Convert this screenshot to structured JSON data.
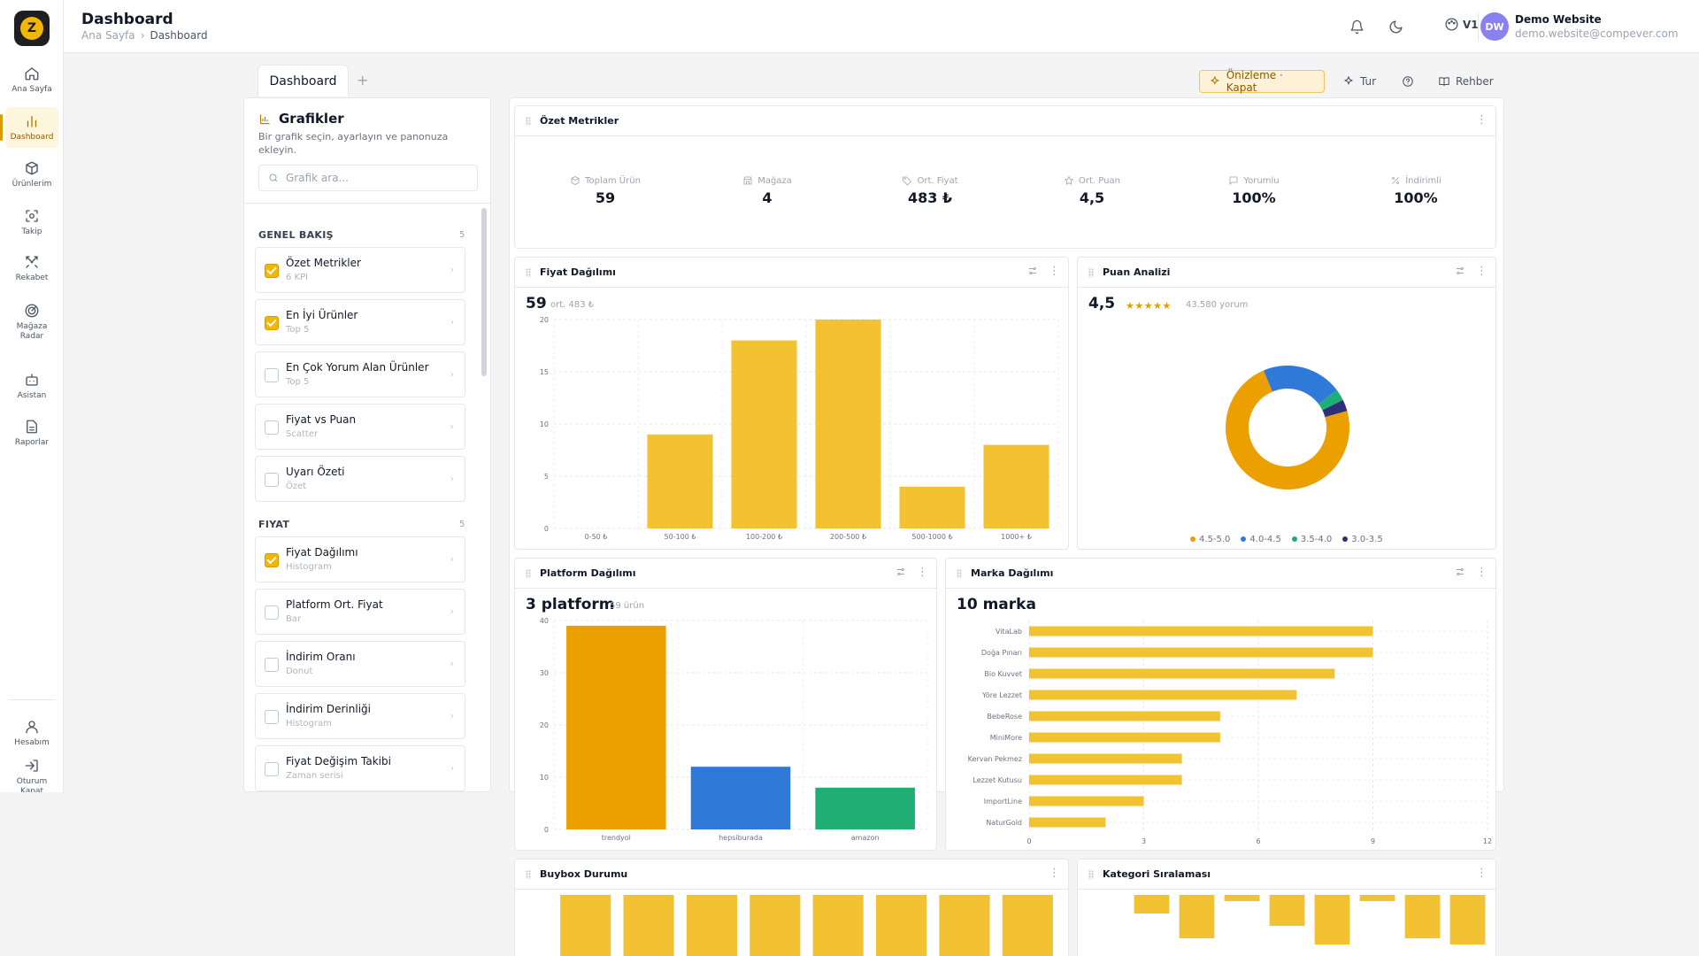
{
  "app": {
    "logo_letter": "Z"
  },
  "nav": [
    {
      "label": "Ana Sayfa",
      "icon": "home-icon"
    },
    {
      "label": "Dashboard",
      "icon": "chart-icon",
      "active": true
    },
    {
      "label": "Ürünlerim",
      "icon": "box-icon"
    },
    {
      "label": "Takip",
      "icon": "scan-icon"
    },
    {
      "label": "Rekabet",
      "icon": "swords-icon"
    },
    {
      "label": "Mağaza Radar",
      "icon": "radar-icon"
    },
    {
      "label": "Asistan",
      "icon": "bot-icon"
    },
    {
      "label": "Raporlar",
      "icon": "file-icon"
    }
  ],
  "nav_bottom": [
    {
      "label": "Hesabım",
      "icon": "user-icon"
    },
    {
      "label": "Oturum Kapat",
      "icon": "logout-icon"
    }
  ],
  "header": {
    "title": "Dashboard",
    "breadcrumb": [
      "Ana Sayfa",
      "Dashboard"
    ],
    "theme_label": "V1",
    "user": {
      "initials": "DW",
      "name": "Demo Website",
      "email": "demo.website@compever.com"
    }
  },
  "tabs": {
    "active": "Dashboard",
    "add": "+"
  },
  "toolbar": {
    "preview": "Önizleme · Kapat",
    "tour": "Tur",
    "guide": "Rehber"
  },
  "picker": {
    "title": "Grafikler",
    "description": "Bir grafik seçin, ayarlayın ve panonuza ekleyin.",
    "search_placeholder": "Grafik ara...",
    "sections": [
      {
        "title": "GENEL BAKIŞ",
        "count": "5",
        "items": [
          {
            "name": "Özet Metrikler",
            "sub": "6 KPI",
            "checked": true
          },
          {
            "name": "En İyi Ürünler",
            "sub": "Top 5",
            "checked": true
          },
          {
            "name": "En Çok Yorum Alan Ürünler",
            "sub": "Top 5",
            "checked": false
          },
          {
            "name": "Fiyat vs Puan",
            "sub": "Scatter",
            "checked": false
          },
          {
            "name": "Uyarı Özeti",
            "sub": "Özet",
            "checked": false
          }
        ]
      },
      {
        "title": "FIYAT",
        "count": "5",
        "items": [
          {
            "name": "Fiyat Dağılımı",
            "sub": "Histogram",
            "checked": true
          },
          {
            "name": "Platform Ort. Fiyat",
            "sub": "Bar",
            "checked": false
          },
          {
            "name": "İndirim Oranı",
            "sub": "Donut",
            "checked": false
          },
          {
            "name": "İndirim Derinliği",
            "sub": "Histogram",
            "checked": false
          },
          {
            "name": "Fiyat Değişim Takibi",
            "sub": "Zaman serisi",
            "checked": false
          }
        ]
      }
    ]
  },
  "summary": {
    "title": "Özet Metrikler",
    "metrics": [
      {
        "label": "Toplam Ürün",
        "value": "59",
        "icon": "package-icon"
      },
      {
        "label": "Mağaza",
        "value": "4",
        "icon": "store-icon"
      },
      {
        "label": "Ort. Fiyat",
        "value": "483 ₺",
        "icon": "tag-icon"
      },
      {
        "label": "Ort. Puan",
        "value": "4,5",
        "icon": "star-icon"
      },
      {
        "label": "Yorumlu",
        "value": "100%",
        "icon": "message-icon"
      },
      {
        "label": "İndirimli",
        "value": "100%",
        "icon": "percent-icon"
      }
    ]
  },
  "price_dist": {
    "title": "Fiyat Dağılımı",
    "big": "59",
    "sub": "ort. 483 ₺"
  },
  "rating": {
    "title": "Puan Analizi",
    "big": "4,5",
    "stars": "★★★★★",
    "sub": "43.580 yorum"
  },
  "platform": {
    "title": "Platform Dağılımı",
    "big": "3 platform",
    "sub": "59 ürün"
  },
  "brand": {
    "title": "Marka Dağılımı",
    "big": "10 marka"
  },
  "buybox": {
    "title": "Buybox Durumu"
  },
  "category": {
    "title": "Kategori Sıralaması"
  },
  "colors": {
    "accent": "#f2b705",
    "orange": "#eba000",
    "blue": "#2f7ad9",
    "green": "#1fae73",
    "navy": "#2d2f7a"
  },
  "chart_data": [
    {
      "type": "bar",
      "name": "price_distribution",
      "categories": [
        "0-50 ₺",
        "50-100 ₺",
        "100-200 ₺",
        "200-500 ₺",
        "500-1000 ₺",
        "1000+ ₺"
      ],
      "values": [
        0,
        9,
        18,
        20,
        4,
        8
      ],
      "ylim": [
        0,
        20
      ],
      "yticks": [
        0,
        5,
        10,
        15,
        20
      ],
      "grid": true
    },
    {
      "type": "pie",
      "name": "rating_distribution",
      "donut": true,
      "categories": [
        "4.5-5.0",
        "4.0-4.5",
        "3.5-4.0",
        "3.0-3.5"
      ],
      "values": [
        73,
        21,
        3,
        3
      ],
      "colors": [
        "#eba000",
        "#2f7ad9",
        "#1fae73",
        "#2d2f7a"
      ],
      "legend": "bottom"
    },
    {
      "type": "bar",
      "name": "platform_distribution",
      "categories": [
        "trendyol",
        "hepsiburada",
        "amazon"
      ],
      "values": [
        39,
        12,
        8
      ],
      "colors": [
        "#eba000",
        "#2f7ad9",
        "#1fae73"
      ],
      "ylim": [
        0,
        40
      ],
      "yticks": [
        0,
        10,
        20,
        30,
        40
      ],
      "grid": true
    },
    {
      "type": "bar",
      "name": "brand_distribution",
      "orientation": "horizontal",
      "categories": [
        "VitaLab",
        "Doğa Pınarı",
        "Bio Kuvvet",
        "Yöre Lezzet",
        "BebeRose",
        "MiniMore",
        "Kervan Pekmez",
        "Lezzet Kutusu",
        "ImportLine",
        "NaturGold"
      ],
      "values": [
        9,
        9,
        8,
        7,
        5,
        5,
        4,
        4,
        3,
        2
      ],
      "xlim": [
        0,
        12
      ],
      "xticks": [
        0,
        3,
        6,
        9,
        12
      ],
      "grid": true
    },
    {
      "type": "bar",
      "name": "buybox_status",
      "values": [
        8,
        8,
        8,
        8,
        8,
        8,
        8,
        8
      ]
    },
    {
      "type": "bar",
      "name": "category_ranking",
      "values": [
        3,
        7,
        1,
        5,
        8,
        1,
        7,
        8
      ]
    }
  ]
}
